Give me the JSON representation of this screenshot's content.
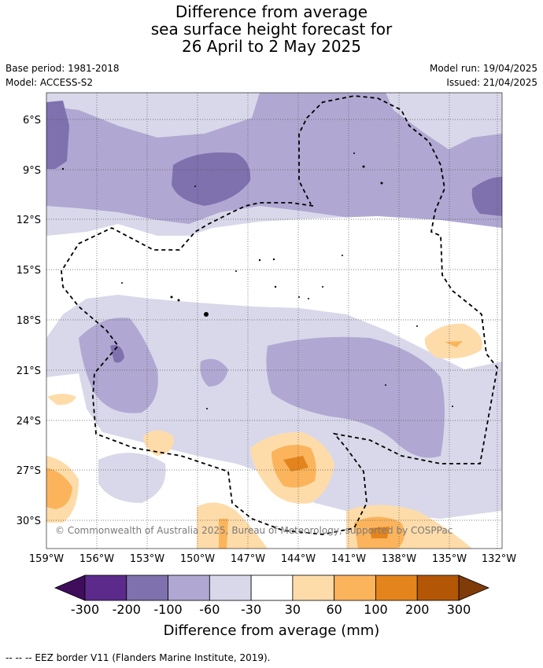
{
  "title_lines": [
    "Difference from average",
    "sea surface height forecast for",
    "26 April to 2 May 2025"
  ],
  "base_period": "Base period: 1981-2018",
  "model": "Model: ACCESS-S2",
  "model_run": "Model run: 19/04/2025",
  "issued": "Issued: 21/04/2025",
  "copyright": "© Commonwealth of Australia 2025, Bureau of Meteorology, supported by COSPPac",
  "lat_ticks": [
    "6°S",
    "9°S",
    "12°S",
    "15°S",
    "18°S",
    "21°S",
    "24°S",
    "27°S",
    "30°S"
  ],
  "lon_ticks": [
    "159°W",
    "156°W",
    "153°W",
    "150°W",
    "147°W",
    "144°W",
    "141°W",
    "138°W",
    "135°W",
    "132°W"
  ],
  "colorbar": {
    "labels": [
      "-300",
      "-200",
      "-100",
      "-60",
      "-30",
      "30",
      "60",
      "100",
      "200",
      "300"
    ],
    "colors": [
      "#3f0d5c",
      "#5b2a8a",
      "#7f70ae",
      "#b0a8d2",
      "#d8d8ea",
      "#ffffff",
      "#fedcaa",
      "#fbb45c",
      "#e4841c",
      "#b35606",
      "#7f3b08"
    ],
    "title": "Difference from average (mm)"
  },
  "footer": "--  --  -- EEZ border V11 (Flanders Marine Institute, 2019)."
}
